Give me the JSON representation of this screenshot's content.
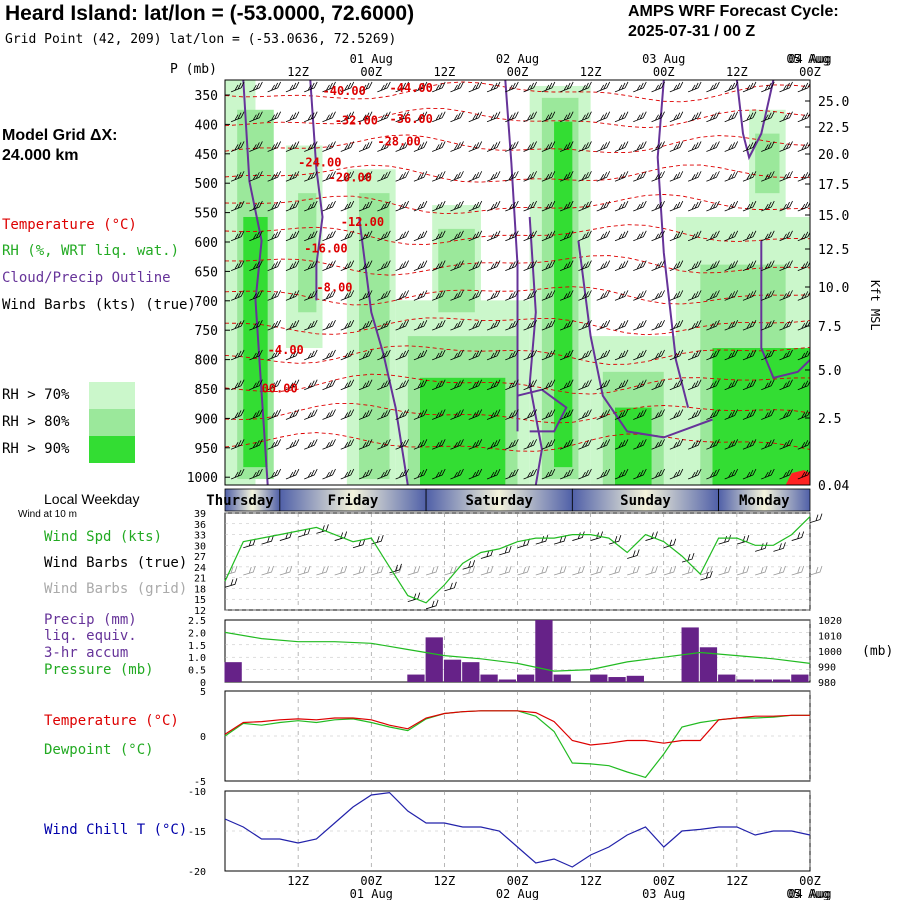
{
  "header": {
    "title": "Heard Island:  lat/lon = (-53.0000, 72.6000)",
    "gridpoint": "Grid Point (42, 209) lat/lon = (-53.0636, 72.5269)",
    "cycle_line1": "AMPS WRF Forecast Cycle:",
    "cycle_line2": "2025-07-31 / 00  Z"
  },
  "legend": {
    "model_grid_line1": "Model Grid ΔX:",
    "model_grid_line2": " 24.000 km",
    "temperature": "Temperature (°C)",
    "rh": "RH (%, WRT liq. wat.)",
    "cloud": "Cloud/Precip Outline",
    "wind": "Wind Barbs (kts) (true)",
    "rh70": "RH > 70%",
    "rh80": "RH > 80%",
    "rh90": "RH > 90%",
    "colors": {
      "rh70": "#cbf7cb",
      "rh80": "#9be89b",
      "rh90": "#33dd33",
      "temperature": "#dd0000",
      "cloud": "#663399"
    }
  },
  "time_axis": {
    "hour_labels": [
      "12Z",
      "00Z",
      "12Z",
      "00Z",
      "12Z",
      "00Z",
      "12Z",
      "00Z",
      "12Z",
      "00Z"
    ],
    "date_labels": [
      "01 Aug",
      "02 Aug",
      "03 Aug",
      "04 Aug",
      "05 Aug"
    ]
  },
  "xsection": {
    "p_label": "P (mb)",
    "right_label": "Kft MSL",
    "p_ticks": [
      350,
      400,
      450,
      500,
      550,
      600,
      650,
      700,
      750,
      800,
      850,
      900,
      950,
      1000
    ],
    "kft_ticks": [
      "25.0",
      "22.5",
      "20.0",
      "17.5",
      "15.0",
      "12.5",
      "10.0",
      "7.5",
      "5.0",
      "2.5",
      "0.04"
    ],
    "temp_labels": [
      "-40.00",
      "-44.00",
      "-32.00",
      "-36.00",
      "-28.00",
      "-24.00",
      "-20.00",
      "-12.00",
      "-16.00",
      "-8.00",
      "-4.00",
      "00.00"
    ]
  },
  "weekday_bar": {
    "label": "Local Weekday",
    "sublabel": "Wind at 10 m",
    "days": [
      "Thursday",
      "Friday",
      "Saturday",
      "Sunday",
      "Monday"
    ]
  },
  "wind_panel": {
    "label_speed": "Wind Spd (kts)",
    "label_true": "Wind Barbs (true)",
    "label_grid": "Wind Barbs (grid)",
    "y_ticks": [
      39,
      36,
      33,
      30,
      27,
      24,
      21,
      18,
      15,
      12
    ]
  },
  "precip_panel": {
    "label1": "Precip (mm)",
    "label2": "liq. equiv.",
    "label3": "3-hr accum",
    "label4": "Pressure (mb)",
    "left_ticks": [
      "2.5",
      "2.0",
      "1.5",
      "1.0",
      "0.5",
      "0"
    ],
    "right_ticks": [
      "1020",
      "1010",
      "1000",
      "990",
      "980"
    ],
    "right_unit": "(mb)"
  },
  "temp_panel": {
    "label_temp": "Temperature (°C)",
    "label_dew": "Dewpoint (°C)",
    "y_ticks": [
      "5",
      "0",
      "-5"
    ]
  },
  "chill_panel": {
    "label": "Wind Chill T (°C)",
    "y_ticks": [
      "-10",
      "-15",
      "-20"
    ]
  },
  "chart_data": [
    {
      "type": "line",
      "title": "Wind Spd (kts)",
      "x_hours": [
        0,
        3,
        6,
        9,
        12,
        15,
        18,
        21,
        24,
        27,
        30,
        33,
        36,
        39,
        42,
        45,
        48,
        51,
        54,
        57,
        60,
        63,
        66,
        69,
        72,
        75,
        78,
        81,
        84,
        87,
        90,
        93,
        96
      ],
      "ylim": [
        12,
        39
      ],
      "series": [
        {
          "name": "Wind Spd (kts)",
          "values": [
            20,
            31,
            32,
            33,
            34,
            35,
            33,
            31,
            32,
            24,
            16,
            14,
            19,
            25,
            28,
            29,
            31,
            32,
            32,
            33,
            33,
            32,
            28,
            33,
            31,
            27,
            22,
            32,
            32,
            30,
            30,
            33,
            38
          ]
        }
      ]
    },
    {
      "type": "bar",
      "title": "Precip (mm) liq. equiv. 3-hr accum",
      "x_hours": [
        0,
        3,
        6,
        9,
        12,
        15,
        18,
        21,
        24,
        27,
        30,
        33,
        36,
        39,
        42,
        45,
        48,
        51,
        54,
        57,
        60,
        63,
        66,
        69,
        72,
        75,
        78,
        81,
        84,
        87,
        90,
        93
      ],
      "ylim": [
        0,
        2.5
      ],
      "values": [
        0.8,
        0,
        0,
        0,
        0,
        0,
        0,
        0,
        0,
        0,
        0.3,
        1.8,
        0.9,
        0.8,
        0.3,
        0.1,
        0.3,
        2.5,
        0.3,
        0,
        0.3,
        0.2,
        0.25,
        0,
        0,
        2.2,
        1.4,
        0.3,
        0.1,
        0.1,
        0.1,
        0.3
      ]
    },
    {
      "type": "line",
      "title": "Pressure (mb)",
      "x_hours": [
        0,
        6,
        12,
        18,
        24,
        30,
        36,
        42,
        48,
        54,
        60,
        66,
        72,
        78,
        84,
        90,
        96
      ],
      "ylim": [
        980,
        1020
      ],
      "series": [
        {
          "name": "Pressure (mb)",
          "values": [
            1012,
            1008,
            1006,
            1006,
            1005,
            1001,
            997,
            995,
            992,
            987,
            988,
            993,
            996,
            999,
            997,
            995,
            992
          ]
        }
      ]
    },
    {
      "type": "line",
      "title": "Temperature / Dewpoint (°C)",
      "x_hours": [
        0,
        3,
        6,
        9,
        12,
        15,
        18,
        21,
        24,
        27,
        30,
        33,
        36,
        39,
        42,
        45,
        48,
        51,
        54,
        57,
        60,
        63,
        66,
        69,
        72,
        75,
        78,
        81,
        84,
        87,
        90,
        93,
        96
      ],
      "ylim": [
        -5,
        5
      ],
      "series": [
        {
          "name": "Temperature (°C)",
          "values": [
            0.2,
            1.5,
            1.6,
            1.8,
            1.9,
            1.8,
            2.0,
            2.0,
            1.8,
            1.2,
            0.8,
            2.0,
            2.5,
            2.7,
            2.8,
            2.8,
            2.8,
            2.6,
            1.6,
            -0.5,
            -1.0,
            -0.8,
            -0.5,
            -0.5,
            -0.8,
            -0.5,
            -0.5,
            1.8,
            2.0,
            2.2,
            2.2,
            2.3,
            2.3
          ]
        },
        {
          "name": "Dewpoint (°C)",
          "values": [
            0.0,
            1.4,
            1.2,
            1.5,
            1.7,
            1.5,
            1.8,
            1.9,
            1.5,
            1.0,
            0.6,
            1.9,
            2.5,
            2.7,
            2.8,
            2.8,
            2.8,
            2.2,
            0.5,
            -3.0,
            -3.1,
            -3.3,
            -4.0,
            -4.6,
            -2.0,
            1.0,
            1.5,
            1.8,
            2.0,
            2.0,
            2.1,
            2.3,
            2.3
          ]
        }
      ]
    },
    {
      "type": "line",
      "title": "Wind Chill T (°C)",
      "x_hours": [
        0,
        3,
        6,
        9,
        12,
        15,
        18,
        21,
        24,
        27,
        30,
        33,
        36,
        39,
        42,
        45,
        48,
        51,
        54,
        57,
        60,
        63,
        66,
        69,
        72,
        75,
        78,
        81,
        84,
        87,
        90,
        93,
        96
      ],
      "ylim": [
        -20,
        -10
      ],
      "series": [
        {
          "name": "Wind Chill T (°C)",
          "values": [
            -13.5,
            -14.5,
            -16.0,
            -16.0,
            -16.5,
            -16.0,
            -14.0,
            -12.0,
            -10.5,
            -10.2,
            -12.5,
            -14.0,
            -14.0,
            -14.5,
            -14.5,
            -15.0,
            -17.0,
            -19.0,
            -18.5,
            -19.5,
            -18.0,
            -17.0,
            -15.5,
            -14.5,
            -17.0,
            -15.0,
            -14.8,
            -14.5,
            -14.5,
            -15.5,
            -15.0,
            -15.0,
            -15.5
          ]
        }
      ]
    }
  ]
}
